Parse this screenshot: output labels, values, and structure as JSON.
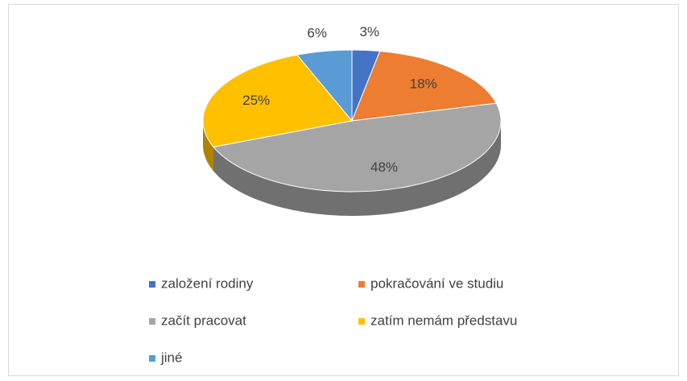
{
  "chart_data": {
    "type": "pie3d",
    "categories": [
      "založení rodiny",
      "pokračování ve studiu",
      "začít pracovat",
      "zatím nemám představu",
      "jiné"
    ],
    "values": [
      3,
      18,
      48,
      25,
      6
    ],
    "value_labels": [
      "3%",
      "18%",
      "48%",
      "25%",
      "6%"
    ],
    "colors": [
      "#4472c4",
      "#ed7d31",
      "#a5a5a5",
      "#ffc000",
      "#5b9bd5"
    ],
    "legend": "bottom"
  }
}
